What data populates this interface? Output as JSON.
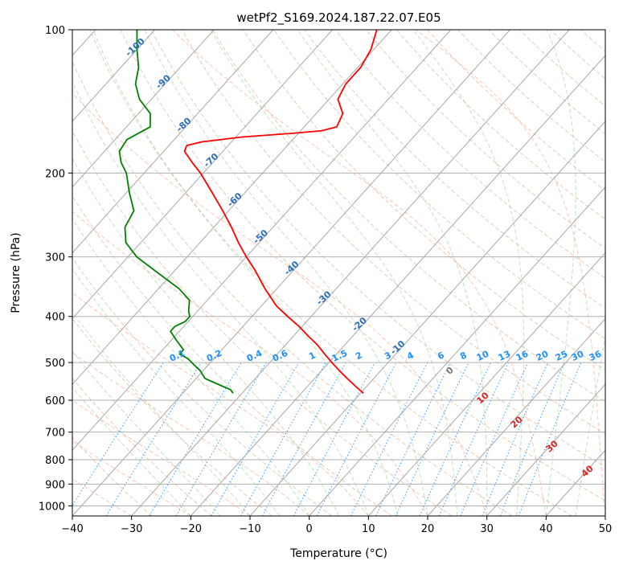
{
  "chart_data": {
    "type": "line",
    "chart_kind": "skew-T log-P diagram",
    "title": "wetPf2_S169.2024.187.22.07.E05",
    "xlabel": "Temperature (°C)",
    "ylabel": "Pressure (hPa)",
    "xlim": [
      -40,
      50
    ],
    "ylim": [
      1050,
      100
    ],
    "y_scale": "log",
    "y_inverted": true,
    "grid": true,
    "x_ticks": [
      -40,
      -30,
      -20,
      -10,
      0,
      10,
      20,
      30,
      40,
      50
    ],
    "x_tick_labels": [
      "−40",
      "−30",
      "−20",
      "−10",
      "0",
      "10",
      "20",
      "30",
      "40",
      "50"
    ],
    "y_ticks": [
      100,
      200,
      300,
      400,
      500,
      600,
      700,
      800,
      900,
      1000
    ],
    "y_tick_labels": [
      "100",
      "200",
      "300",
      "400",
      "500",
      "600",
      "700",
      "800",
      "900",
      "1000"
    ],
    "series": [
      {
        "role": "temperature",
        "color": "#ff0000",
        "p": [
          580,
          560,
          540,
          520,
          500,
          480,
          460,
          440,
          420,
          400,
          380,
          350,
          320,
          300,
          280,
          260,
          240,
          220,
          200,
          190,
          180,
          175,
          172,
          168,
          165,
          163,
          160,
          150,
          140,
          130,
          120,
          110,
          100
        ],
        "values": [
          -9.5,
          -12.0,
          -14.5,
          -17.0,
          -19.5,
          -22.0,
          -24.5,
          -27.5,
          -30.5,
          -34.0,
          -37.5,
          -42.0,
          -46.5,
          -50.0,
          -53.5,
          -57.0,
          -61.0,
          -65.5,
          -70.5,
          -73.5,
          -76.5,
          -77.0,
          -75.0,
          -69.0,
          -61.0,
          -56.5,
          -54.5,
          -55.5,
          -58.5,
          -59.5,
          -59.5,
          -60.5,
          -62.5
        ]
      },
      {
        "role": "dewpoint",
        "color": "#008000",
        "p": [
          580,
          570,
          560,
          550,
          540,
          530,
          520,
          505,
          490,
          480,
          470,
          450,
          430,
          420,
          410,
          400,
          390,
          370,
          350,
          320,
          300,
          280,
          260,
          240,
          220,
          200,
          190,
          180,
          170,
          160,
          150,
          140,
          130,
          120,
          110,
          100
        ],
        "values": [
          -31.5,
          -32.5,
          -34.5,
          -36.5,
          -38.5,
          -39.5,
          -40.5,
          -42.5,
          -44.5,
          -46.5,
          -46.5,
          -49.0,
          -51.5,
          -51.5,
          -50.5,
          -50.5,
          -51.5,
          -53.0,
          -56.5,
          -63.5,
          -68.5,
          -72.5,
          -75.0,
          -76.0,
          -79.5,
          -83.0,
          -85.5,
          -87.5,
          -88.0,
          -86.0,
          -88.0,
          -92.0,
          -95.0,
          -97.0,
          -100.0,
          -103.0
        ]
      }
    ],
    "isotherm_label_values": [
      "-100",
      "-90",
      "-80",
      "-70",
      "-60",
      "-50",
      "-40",
      "-30",
      "-20",
      "-10"
    ],
    "mixing_ratio_labels": [
      "0.1",
      "0.2",
      "0.4",
      "0.6",
      "1",
      "1.5",
      "2",
      "3",
      "4",
      "6",
      "8",
      "10",
      "13",
      "16",
      "20",
      "25",
      "30",
      "36"
    ],
    "moist_adiabat_labels": [
      "0",
      "10",
      "20",
      "30",
      "40"
    ]
  }
}
